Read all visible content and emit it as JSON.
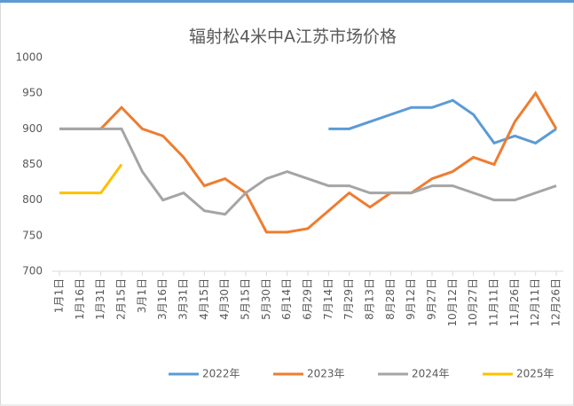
{
  "chart_data": {
    "type": "line",
    "title": "辐射松4米中A江苏市场价格",
    "categories": [
      "1月1日",
      "1月16日",
      "1月31日",
      "2月15日",
      "3月1日",
      "3月16日",
      "3月31日",
      "4月15日",
      "4月30日",
      "5月15日",
      "5月30日",
      "6月14日",
      "6月29日",
      "7月14日",
      "7月29日",
      "8月13日",
      "8月28日",
      "9月12日",
      "9月27日",
      "10月12日",
      "10月27日",
      "11月11日",
      "11月26日",
      "12月11日",
      "12月26日"
    ],
    "series": [
      {
        "name": "2022年",
        "color": "#5b9bd5",
        "values": [
          null,
          null,
          null,
          null,
          null,
          null,
          null,
          null,
          null,
          null,
          null,
          null,
          null,
          900,
          900,
          910,
          920,
          930,
          930,
          940,
          920,
          880,
          890,
          880,
          900
        ]
      },
      {
        "name": "2023年",
        "color": "#ed7d31",
        "values": [
          900,
          900,
          900,
          930,
          900,
          890,
          860,
          820,
          830,
          810,
          755,
          755,
          760,
          785,
          810,
          790,
          810,
          810,
          830,
          840,
          860,
          850,
          910,
          950,
          900
        ]
      },
      {
        "name": "2024年",
        "color": "#a5a5a5",
        "values": [
          900,
          900,
          900,
          900,
          840,
          800,
          810,
          785,
          780,
          810,
          830,
          840,
          830,
          820,
          820,
          810,
          810,
          810,
          820,
          820,
          810,
          800,
          800,
          810,
          820
        ]
      },
      {
        "name": "2025年",
        "color": "#ffc000",
        "values": [
          810,
          810,
          810,
          850,
          null,
          null,
          null,
          null,
          null,
          null,
          null,
          null,
          null,
          null,
          null,
          null,
          null,
          null,
          null,
          null,
          null,
          null,
          null,
          null,
          null
        ]
      }
    ],
    "ylim": [
      700,
      1000
    ],
    "yticks": [
      700,
      750,
      800,
      850,
      900,
      950,
      1000
    ],
    "legend": "bottom"
  }
}
